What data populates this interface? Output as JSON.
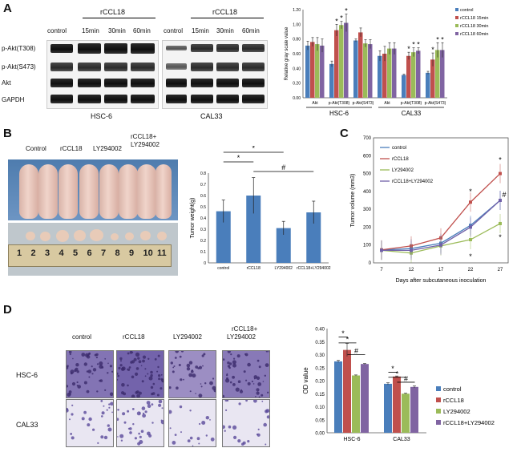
{
  "panels": {
    "A": "A",
    "B": "B",
    "C": "C",
    "D": "D"
  },
  "panelA": {
    "treatment_header": "rCCL18",
    "lanes": [
      "control",
      "15min",
      "30min",
      "60min"
    ],
    "left_cell": "HSC-6",
    "right_cell": "CAL33",
    "bands": [
      "p-Akt(T308)",
      "p-Akt(S473)",
      "Akt",
      "GAPDH"
    ],
    "chart_data": {
      "type": "bar",
      "ylabel": "Relative gray scale value",
      "ylim": [
        0,
        1.2
      ],
      "yticks": [
        "0.00",
        "0.20",
        "0.40",
        "0.60",
        "0.80",
        "1.00",
        "1.20"
      ],
      "categories": [
        "Akt",
        "p-Akt(T308)",
        "p-Akt(S473)",
        "Akt",
        "p-Akt(T308)",
        "p-Akt(S473)"
      ],
      "group_labels": [
        "HSC-6",
        "CAL33"
      ],
      "series": [
        {
          "name": "control",
          "color": "#4a7ebb",
          "values": [
            0.71,
            0.46,
            0.78,
            0.57,
            0.31,
            0.34
          ],
          "err": [
            0.06,
            0.04,
            0.02,
            0.07,
            0.01,
            0.02
          ]
        },
        {
          "name": "rCCL18 15min",
          "color": "#c0504d",
          "values": [
            0.76,
            0.92,
            0.89,
            0.6,
            0.57,
            0.52
          ],
          "err": [
            0.06,
            0.08,
            0.06,
            0.1,
            0.05,
            0.09
          ]
        },
        {
          "name": "rCCL18 30min",
          "color": "#9bbb59",
          "values": [
            0.73,
            0.99,
            0.74,
            0.67,
            0.62,
            0.65
          ],
          "err": [
            0.09,
            0.05,
            0.05,
            0.08,
            0.06,
            0.1
          ]
        },
        {
          "name": "rCCL18 60min",
          "color": "#8064a2",
          "values": [
            0.71,
            1.02,
            0.73,
            0.67,
            0.64,
            0.65
          ],
          "err": [
            0.09,
            0.12,
            0.06,
            0.08,
            0.04,
            0.1
          ]
        }
      ],
      "stars": [
        [
          1,
          1
        ],
        [
          1,
          2
        ],
        [
          1,
          3
        ],
        [
          4,
          1
        ],
        [
          4,
          2
        ],
        [
          4,
          3
        ],
        [
          5,
          1
        ],
        [
          5,
          2
        ],
        [
          5,
          3
        ]
      ]
    }
  },
  "panelB": {
    "groups": [
      "Control",
      "rCCL18",
      "LY294002",
      "rCCL18+",
      "LY294002"
    ],
    "ruler_numbers": [
      "1",
      "2",
      "3",
      "4",
      "5",
      "6",
      "7",
      "8",
      "9",
      "10",
      "11"
    ],
    "chart_data": {
      "type": "bar",
      "ylabel": "Tumor weight(g)",
      "ylim": [
        0,
        0.8
      ],
      "yticks": [
        "0",
        "0.1",
        "0.2",
        "0.3",
        "0.4",
        "0.5",
        "0.6",
        "0.7",
        "0.8"
      ],
      "categories": [
        "control",
        "rCCL18",
        "LY294002",
        "rCCL18+LY294002"
      ],
      "values": [
        0.46,
        0.6,
        0.31,
        0.45
      ],
      "err": [
        0.1,
        0.16,
        0.06,
        0.1
      ],
      "sig": [
        "*",
        "*",
        "#"
      ],
      "color": "#4a7ebb"
    }
  },
  "panelC": {
    "chart_data": {
      "type": "line",
      "xlabel": "Days after subcutaneous inoculation",
      "ylabel": "Tumor volume (mm3)",
      "x": [
        7,
        12,
        17,
        22,
        27
      ],
      "ylim": [
        0,
        700
      ],
      "yticks": [
        "0",
        "100",
        "200",
        "300",
        "400",
        "500",
        "600",
        "700"
      ],
      "series": [
        {
          "name": "control",
          "color": "#4a7ebb",
          "values": [
            72,
            80,
            110,
            210,
            350
          ]
        },
        {
          "name": "rCCL18",
          "color": "#c0504d",
          "values": [
            73,
            95,
            140,
            340,
            500
          ]
        },
        {
          "name": "LY294002",
          "color": "#9bbb59",
          "values": [
            70,
            55,
            95,
            130,
            220
          ]
        },
        {
          "name": "rCCL18+LY294002",
          "color": "#7060a8",
          "values": [
            70,
            70,
            100,
            200,
            350
          ]
        }
      ],
      "marks": [
        "*",
        "*",
        "*",
        "#",
        "*"
      ]
    }
  },
  "panelD": {
    "columns": [
      "control",
      "rCCL18",
      "LY294002",
      "rCCL18+",
      "LY294002"
    ],
    "rows": [
      "HSC-6",
      "CAL33"
    ],
    "chart_data": {
      "type": "bar",
      "ylabel": "OD value",
      "ylim": [
        0,
        0.4
      ],
      "yticks": [
        "0.00",
        "0.05",
        "0.10",
        "0.15",
        "0.20",
        "0.25",
        "0.30",
        "0.35",
        "0.40"
      ],
      "categories": [
        "HSC-6",
        "CAL33"
      ],
      "series": [
        {
          "name": "control",
          "color": "#4a7ebb",
          "values": [
            0.274,
            0.188
          ],
          "err": [
            0.004,
            0.004
          ]
        },
        {
          "name": "rCCL18",
          "color": "#c0504d",
          "values": [
            0.318,
            0.216
          ],
          "err": [
            0.025,
            0.002
          ]
        },
        {
          "name": "LY294002",
          "color": "#9bbb59",
          "values": [
            0.22,
            0.15
          ],
          "err": [
            0.002,
            0.002
          ]
        },
        {
          "name": "rCCL18+LY294002",
          "color": "#8064a2",
          "values": [
            0.264,
            0.176
          ],
          "err": [
            0.002,
            0.004
          ]
        }
      ],
      "sig": [
        "*",
        "*",
        "#",
        "*",
        "*",
        "#"
      ]
    }
  }
}
